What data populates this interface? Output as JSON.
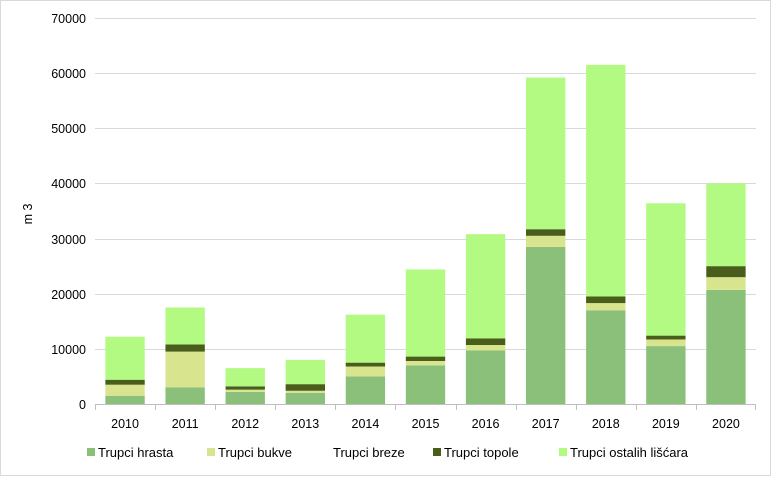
{
  "chart_data": {
    "type": "bar",
    "stacked": true,
    "title": "",
    "xlabel": "",
    "ylabel": "m 3",
    "ylim": [
      0,
      70000
    ],
    "yticks": [
      0,
      10000,
      20000,
      30000,
      40000,
      50000,
      60000,
      70000
    ],
    "grid": true,
    "legend_position": "bottom",
    "categories": [
      "2010",
      "2011",
      "2012",
      "2013",
      "2014",
      "2015",
      "2016",
      "2017",
      "2018",
      "2019",
      "2020"
    ],
    "series": [
      {
        "name": "Trupci hrasta",
        "color": "#8bc07a",
        "values": [
          1500,
          3000,
          2200,
          2000,
          5000,
          7000,
          9700,
          28500,
          17000,
          10500,
          20700
        ]
      },
      {
        "name": "Trupci bukve",
        "color": "#d9e48f",
        "values": [
          2000,
          6500,
          400,
          400,
          1800,
          800,
          1000,
          2000,
          1300,
          1200,
          2300
        ]
      },
      {
        "name": "Trupci breze",
        "color": "#ffffff",
        "values": [
          0,
          0,
          0,
          0,
          0,
          0,
          0,
          0,
          0,
          0,
          0
        ]
      },
      {
        "name": "Trupci topole",
        "color": "#4a5e1c",
        "values": [
          900,
          1300,
          600,
          1200,
          700,
          800,
          1200,
          1200,
          1200,
          700,
          2000
        ]
      },
      {
        "name": "Trupci ostalih lišćara",
        "color": "#b3fa82",
        "values": [
          7800,
          6700,
          3300,
          4400,
          8700,
          15800,
          18900,
          27500,
          42000,
          24000,
          15000
        ]
      }
    ]
  }
}
